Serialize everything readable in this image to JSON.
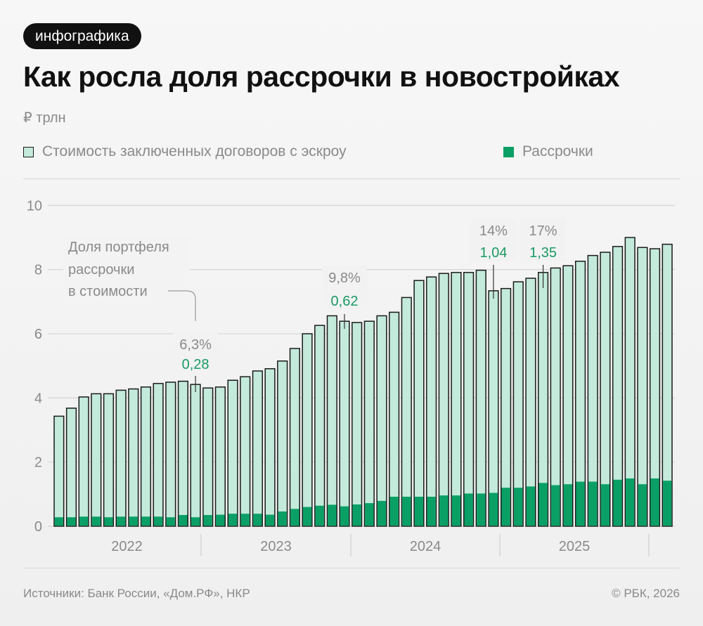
{
  "badge": "инфографика",
  "title": "Как росла доля рассрочки в новостройках",
  "unit": "₽ трлн",
  "legend": [
    {
      "label": "Стоимость заключенных договоров с эскроу",
      "color": "#c3eadb"
    },
    {
      "label": "Рассрочки",
      "color": "#0aa065"
    }
  ],
  "annotation_caption": [
    "Доля портфеля",
    "рассрочки",
    "в стоимости"
  ],
  "footer": {
    "source": "Источники: Банк России, «Дом.РФ», НКР",
    "copyright": "© РБК, 2026"
  },
  "colors": {
    "escrow": "#c3eadb",
    "installment": "#0aa065",
    "outline": "#1a1a1a",
    "annotation_value": "#1a9a66",
    "annotation_pct": "#8a8a8a"
  },
  "chart_data": {
    "type": "bar",
    "stacked": "overlay",
    "ylim": [
      0,
      10
    ],
    "y_ticks": [
      "0",
      "2",
      "4",
      "6",
      "8",
      "10"
    ],
    "x_ticks": [
      "2022",
      "2023",
      "2024",
      "2025"
    ],
    "grid": true,
    "series": [
      {
        "name": "Стоимость заключенных договоров с эскроу",
        "values": [
          3.43,
          3.68,
          4.03,
          4.13,
          4.13,
          4.24,
          4.28,
          4.34,
          4.45,
          4.49,
          4.52,
          4.42,
          4.31,
          4.34,
          4.55,
          4.66,
          4.84,
          4.91,
          5.15,
          5.54,
          6.0,
          6.26,
          6.56,
          6.39,
          6.35,
          6.39,
          6.56,
          6.67,
          7.13,
          7.66,
          7.77,
          7.88,
          7.91,
          7.91,
          7.98,
          7.34,
          7.41,
          7.62,
          7.73,
          7.91,
          8.05,
          8.12,
          8.26,
          8.44,
          8.54,
          8.72,
          9.0,
          8.69,
          8.65,
          8.79
        ]
      },
      {
        "name": "Рассрочки",
        "values": [
          0.28,
          0.28,
          0.3,
          0.3,
          0.28,
          0.3,
          0.3,
          0.3,
          0.3,
          0.28,
          0.35,
          0.28,
          0.35,
          0.36,
          0.39,
          0.39,
          0.39,
          0.36,
          0.46,
          0.54,
          0.6,
          0.64,
          0.67,
          0.62,
          0.68,
          0.72,
          0.79,
          0.92,
          0.92,
          0.92,
          0.92,
          0.96,
          0.96,
          1.02,
          1.02,
          1.04,
          1.2,
          1.2,
          1.24,
          1.35,
          1.28,
          1.31,
          1.39,
          1.39,
          1.31,
          1.45,
          1.49,
          1.31,
          1.49,
          1.42
        ]
      }
    ],
    "annotations": [
      {
        "bar": 11,
        "pct": "6,3%",
        "value": "0,28"
      },
      {
        "bar": 23,
        "pct": "9,8%",
        "value": "0,62"
      },
      {
        "bar": 35,
        "pct": "14%",
        "value": "1,04"
      },
      {
        "bar": 39,
        "pct": "17%",
        "value": "1,35"
      }
    ]
  }
}
